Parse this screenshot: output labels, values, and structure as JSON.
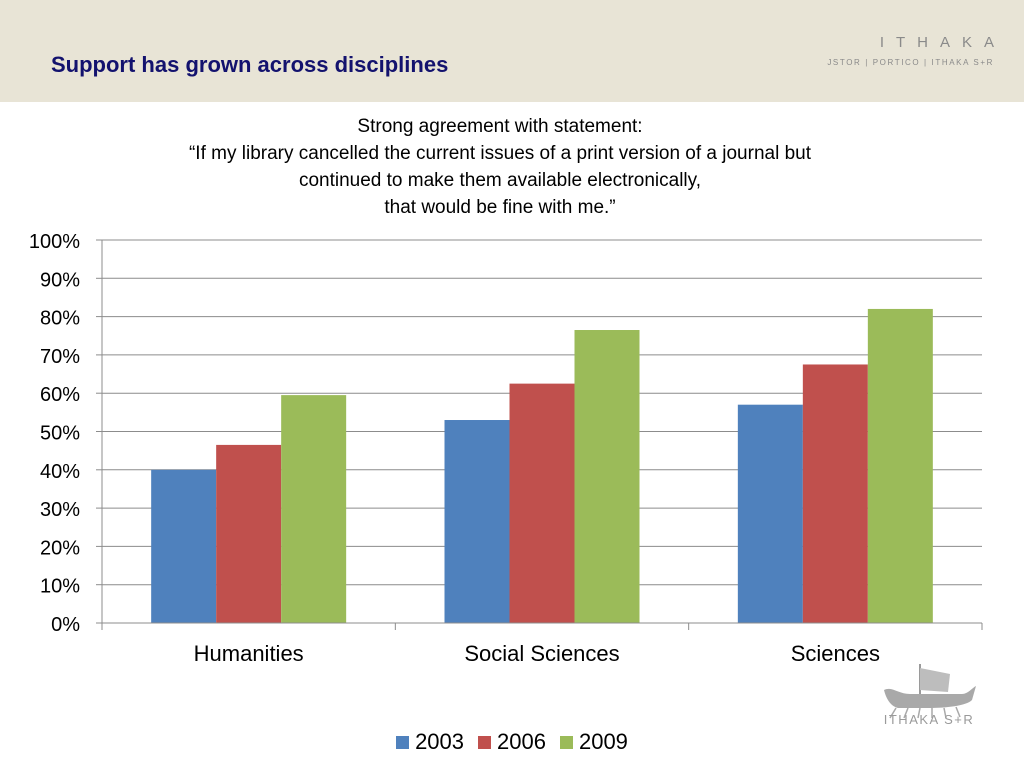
{
  "header": {
    "title": "Support has grown across disciplines",
    "brand": {
      "name": "ITHAKA",
      "tagline": "JSTOR | PORTICO | ITHAKA S+R"
    }
  },
  "statement": {
    "lines": [
      "Strong agreement with statement:",
      "“If my library cancelled the current issues of a print version of a journal but",
      "continued to make them available electronically,",
      "that would be fine with me.”"
    ]
  },
  "chart_data": {
    "type": "bar",
    "title": "",
    "xlabel": "",
    "ylabel": "",
    "categories": [
      "Humanities",
      "Social Sciences",
      "Sciences"
    ],
    "series": [
      {
        "name": "2003",
        "color": "#4f81bd",
        "values": [
          40,
          53,
          57
        ]
      },
      {
        "name": "2006",
        "color": "#c0504d",
        "values": [
          46.5,
          62.5,
          67.5
        ]
      },
      {
        "name": "2009",
        "color": "#9bbb59",
        "values": [
          59.5,
          76.5,
          82
        ]
      }
    ],
    "ylim": [
      0,
      100
    ],
    "yticks": [
      "0%",
      "10%",
      "20%",
      "30%",
      "40%",
      "50%",
      "60%",
      "70%",
      "80%",
      "90%",
      "100%"
    ],
    "grid": true,
    "legend_position": "bottom"
  },
  "footer_logo": {
    "text": "ITHAKA S+R",
    "icon": "ship-icon"
  }
}
